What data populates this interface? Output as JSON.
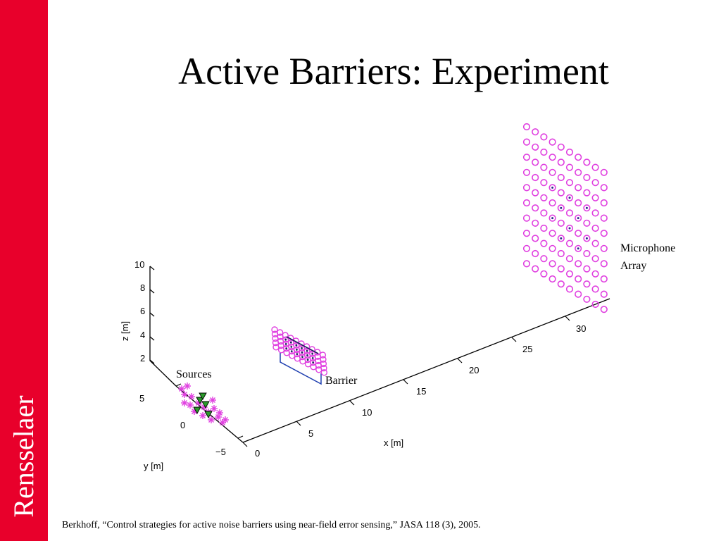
{
  "slide": {
    "title": "Active Barriers: Experiment",
    "brand": "Rensselaer",
    "citation": "Berkhoff, “Control strategies for active noise barriers using near-field error sensing,” JASA 118 (3), 2005.",
    "colors": {
      "sidebar": "#e8002b",
      "marker": "#e040e0",
      "source_green": "#2a9a2a",
      "barrier_line": "#2040b0"
    }
  },
  "figure": {
    "axes": {
      "x_label": "x [m]",
      "y_label": "y [m]",
      "z_label": "z [m]",
      "x_ticks": [
        "0",
        "5",
        "10",
        "15",
        "20",
        "25",
        "30"
      ],
      "y_ticks": [
        "5",
        "0",
        "−5"
      ],
      "z_ticks": [
        "2",
        "4",
        "6",
        "8",
        "10"
      ]
    },
    "annotations": {
      "sources": "Sources",
      "barrier": "Barrier",
      "mic_line1": "Microphone",
      "mic_line2": "Array"
    }
  }
}
